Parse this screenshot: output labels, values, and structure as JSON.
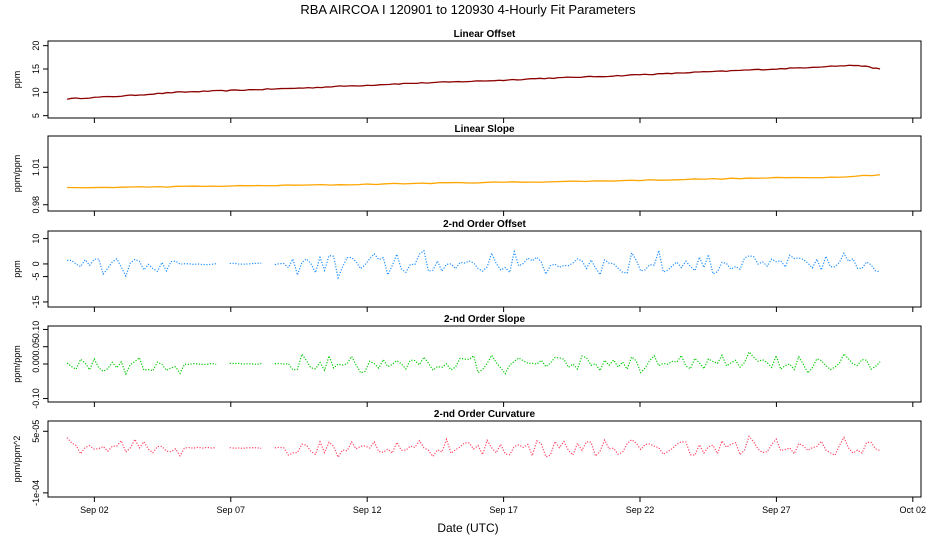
{
  "chart_data": {
    "type": "line",
    "title": "RBA   AIRCOA I   120901 to 120930   4-Hourly Fit Parameters",
    "xlabel": "Date (UTC)",
    "x_ticks": [
      "Sep 02",
      "Sep 07",
      "Sep 12",
      "Sep 17",
      "Sep 22",
      "Sep 27",
      "Oct 02"
    ],
    "x_tick_days": [
      2,
      7,
      12,
      17,
      22,
      27,
      32
    ],
    "xlim": [
      0.3,
      32.3
    ],
    "x_data_start": 1.0,
    "x_data_end": 30.8,
    "gap_note": "2-nd order panels have a partial data gap around Sep 05-Sep 09",
    "panels": [
      {
        "title": "Linear Offset",
        "ylabel": "ppm",
        "yticks": [
          "5",
          "10",
          "15",
          "20"
        ],
        "ytick_values": [
          5,
          10,
          15,
          20
        ],
        "ylim": [
          4.5,
          21
        ],
        "color": "#8B0000",
        "style": "solid",
        "series": [
          {
            "x": 1.0,
            "y": 8.6
          },
          {
            "x": 2.0,
            "y": 8.9
          },
          {
            "x": 3.0,
            "y": 9.2
          },
          {
            "x": 4.0,
            "y": 9.6
          },
          {
            "x": 5.0,
            "y": 10.0
          },
          {
            "x": 6.0,
            "y": 10.2
          },
          {
            "x": 7.0,
            "y": 10.4
          },
          {
            "x": 8.0,
            "y": 10.6
          },
          {
            "x": 9.0,
            "y": 10.8
          },
          {
            "x": 10.0,
            "y": 11.0
          },
          {
            "x": 11.0,
            "y": 11.3
          },
          {
            "x": 12.0,
            "y": 11.5
          },
          {
            "x": 13.0,
            "y": 11.8
          },
          {
            "x": 14.0,
            "y": 12.0
          },
          {
            "x": 15.0,
            "y": 12.2
          },
          {
            "x": 16.0,
            "y": 12.4
          },
          {
            "x": 17.0,
            "y": 12.6
          },
          {
            "x": 18.0,
            "y": 12.9
          },
          {
            "x": 19.0,
            "y": 13.1
          },
          {
            "x": 20.0,
            "y": 13.3
          },
          {
            "x": 21.0,
            "y": 13.5
          },
          {
            "x": 22.0,
            "y": 13.8
          },
          {
            "x": 23.0,
            "y": 14.0
          },
          {
            "x": 24.0,
            "y": 14.3
          },
          {
            "x": 25.0,
            "y": 14.5
          },
          {
            "x": 26.0,
            "y": 14.8
          },
          {
            "x": 27.0,
            "y": 15.0
          },
          {
            "x": 28.0,
            "y": 15.3
          },
          {
            "x": 29.0,
            "y": 15.6
          },
          {
            "x": 30.0,
            "y": 15.8
          },
          {
            "x": 30.8,
            "y": 15.0
          }
        ]
      },
      {
        "title": "Linear Slope",
        "ylabel": "ppm/ppm",
        "yticks": [
          "0.98",
          "1.01"
        ],
        "ytick_values": [
          0.98,
          1.01
        ],
        "ylim": [
          0.975,
          1.035
        ],
        "color": "#FFA500",
        "style": "solid",
        "series": [
          {
            "x": 1.0,
            "y": 0.9935
          },
          {
            "x": 3.0,
            "y": 0.994
          },
          {
            "x": 5.0,
            "y": 0.9945
          },
          {
            "x": 7.0,
            "y": 0.995
          },
          {
            "x": 9.0,
            "y": 0.9955
          },
          {
            "x": 11.0,
            "y": 0.996
          },
          {
            "x": 13.0,
            "y": 0.9968
          },
          {
            "x": 15.0,
            "y": 0.9975
          },
          {
            "x": 17.0,
            "y": 0.998
          },
          {
            "x": 19.0,
            "y": 0.9985
          },
          {
            "x": 21.0,
            "y": 0.9992
          },
          {
            "x": 23.0,
            "y": 1.0
          },
          {
            "x": 25.0,
            "y": 1.0008
          },
          {
            "x": 27.0,
            "y": 1.0015
          },
          {
            "x": 29.0,
            "y": 1.002
          },
          {
            "x": 30.8,
            "y": 1.004
          }
        ]
      },
      {
        "title": "2-nd Order Offset",
        "ylabel": "ppm",
        "yticks": [
          "-15",
          "-5",
          "0",
          "10"
        ],
        "ytick_values": [
          -15,
          -5,
          0,
          10
        ],
        "ylim": [
          -17,
          13
        ],
        "color": "#1E90FF",
        "style": "dotted",
        "series_amplitude": 4,
        "baseline": 0
      },
      {
        "title": "2-nd Order Slope",
        "ylabel": "ppm/ppm",
        "yticks": [
          "-0.10",
          "0.00",
          "0.05",
          "0.10"
        ],
        "ytick_values": [
          -0.1,
          0.0,
          0.05,
          0.1
        ],
        "ylim": [
          -0.11,
          0.11
        ],
        "color": "#00CC00",
        "style": "dotted",
        "series_amplitude": 0.025,
        "baseline": 0
      },
      {
        "title": "2-nd Order Curvature",
        "ylabel": "ppm/ppm^2",
        "yticks": [
          "-1e-04",
          "5e-05"
        ],
        "ytick_values": [
          -0.0001,
          5e-05
        ],
        "ylim": [
          -0.00011,
          7.5e-05
        ],
        "color": "#FF4466",
        "style": "dotted",
        "series_amplitude": 2e-05,
        "baseline": 1e-05
      }
    ]
  }
}
